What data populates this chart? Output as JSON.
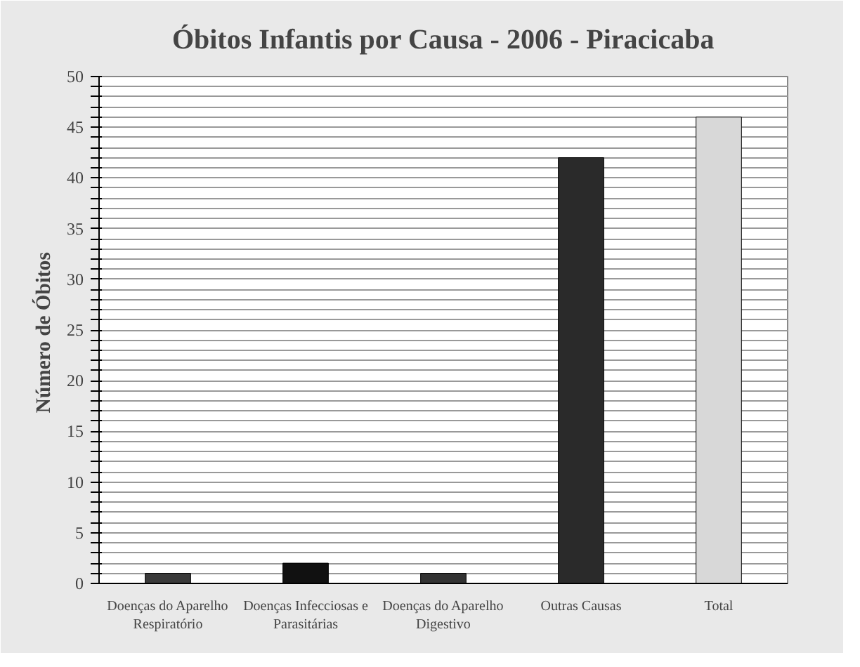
{
  "chart_data": {
    "type": "bar",
    "title": "Óbitos Infantis por Causa - 2006 - Piracicaba",
    "ylabel": "Número de  Óbitos",
    "categories": [
      "Doenças do Aparelho\nRespiratório",
      "Doenças Infecciosas e\nParasitárias",
      "Doenças do Aparelho\nDigestivo",
      "Outras Causas",
      "Total"
    ],
    "values": [
      1,
      2,
      1,
      42,
      46
    ],
    "colors": [
      "#3a3a3a",
      "#111111",
      "#333333",
      "#2a2a2a",
      "#d8d8d8"
    ],
    "ylim": [
      0,
      50
    ],
    "yticks": [
      0,
      {
        "value": 1,
        "label": null
      },
      {
        "value": 2,
        "label": null
      },
      {
        "value": 3,
        "label": null
      },
      {
        "value": 4,
        "label": null
      },
      5,
      {
        "value": 6,
        "label": null
      },
      {
        "value": 7,
        "label": null
      },
      {
        "value": 8,
        "label": null
      },
      {
        "value": 9,
        "label": null
      },
      10,
      {
        "value": 11,
        "label": null
      },
      {
        "value": 12,
        "label": null
      },
      {
        "value": 13,
        "label": null
      },
      {
        "value": 14,
        "label": null
      },
      15,
      {
        "value": 16,
        "label": null
      },
      {
        "value": 17,
        "label": null
      },
      {
        "value": 18,
        "label": null
      },
      {
        "value": 19,
        "label": null
      },
      20,
      {
        "value": 21,
        "label": null
      },
      {
        "value": 22,
        "label": null
      },
      {
        "value": 23,
        "label": null
      },
      {
        "value": 24,
        "label": null
      },
      25,
      {
        "value": 26,
        "label": null
      },
      {
        "value": 27,
        "label": null
      },
      {
        "value": 28,
        "label": null
      },
      {
        "value": 29,
        "label": null
      },
      30,
      {
        "value": 31,
        "label": null
      },
      {
        "value": 32,
        "label": null
      },
      {
        "value": 33,
        "label": null
      },
      {
        "value": 34,
        "label": null
      },
      35,
      {
        "value": 36,
        "label": null
      },
      {
        "value": 37,
        "label": null
      },
      {
        "value": 38,
        "label": null
      },
      {
        "value": 39,
        "label": null
      },
      40,
      {
        "value": 41,
        "label": null
      },
      {
        "value": 42,
        "label": null
      },
      {
        "value": 43,
        "label": null
      },
      {
        "value": 44,
        "label": null
      },
      45,
      {
        "value": 46,
        "label": null
      },
      {
        "value": 47,
        "label": null
      },
      {
        "value": 48,
        "label": null
      },
      {
        "value": 49,
        "label": null
      },
      50
    ],
    "grid": "y"
  }
}
